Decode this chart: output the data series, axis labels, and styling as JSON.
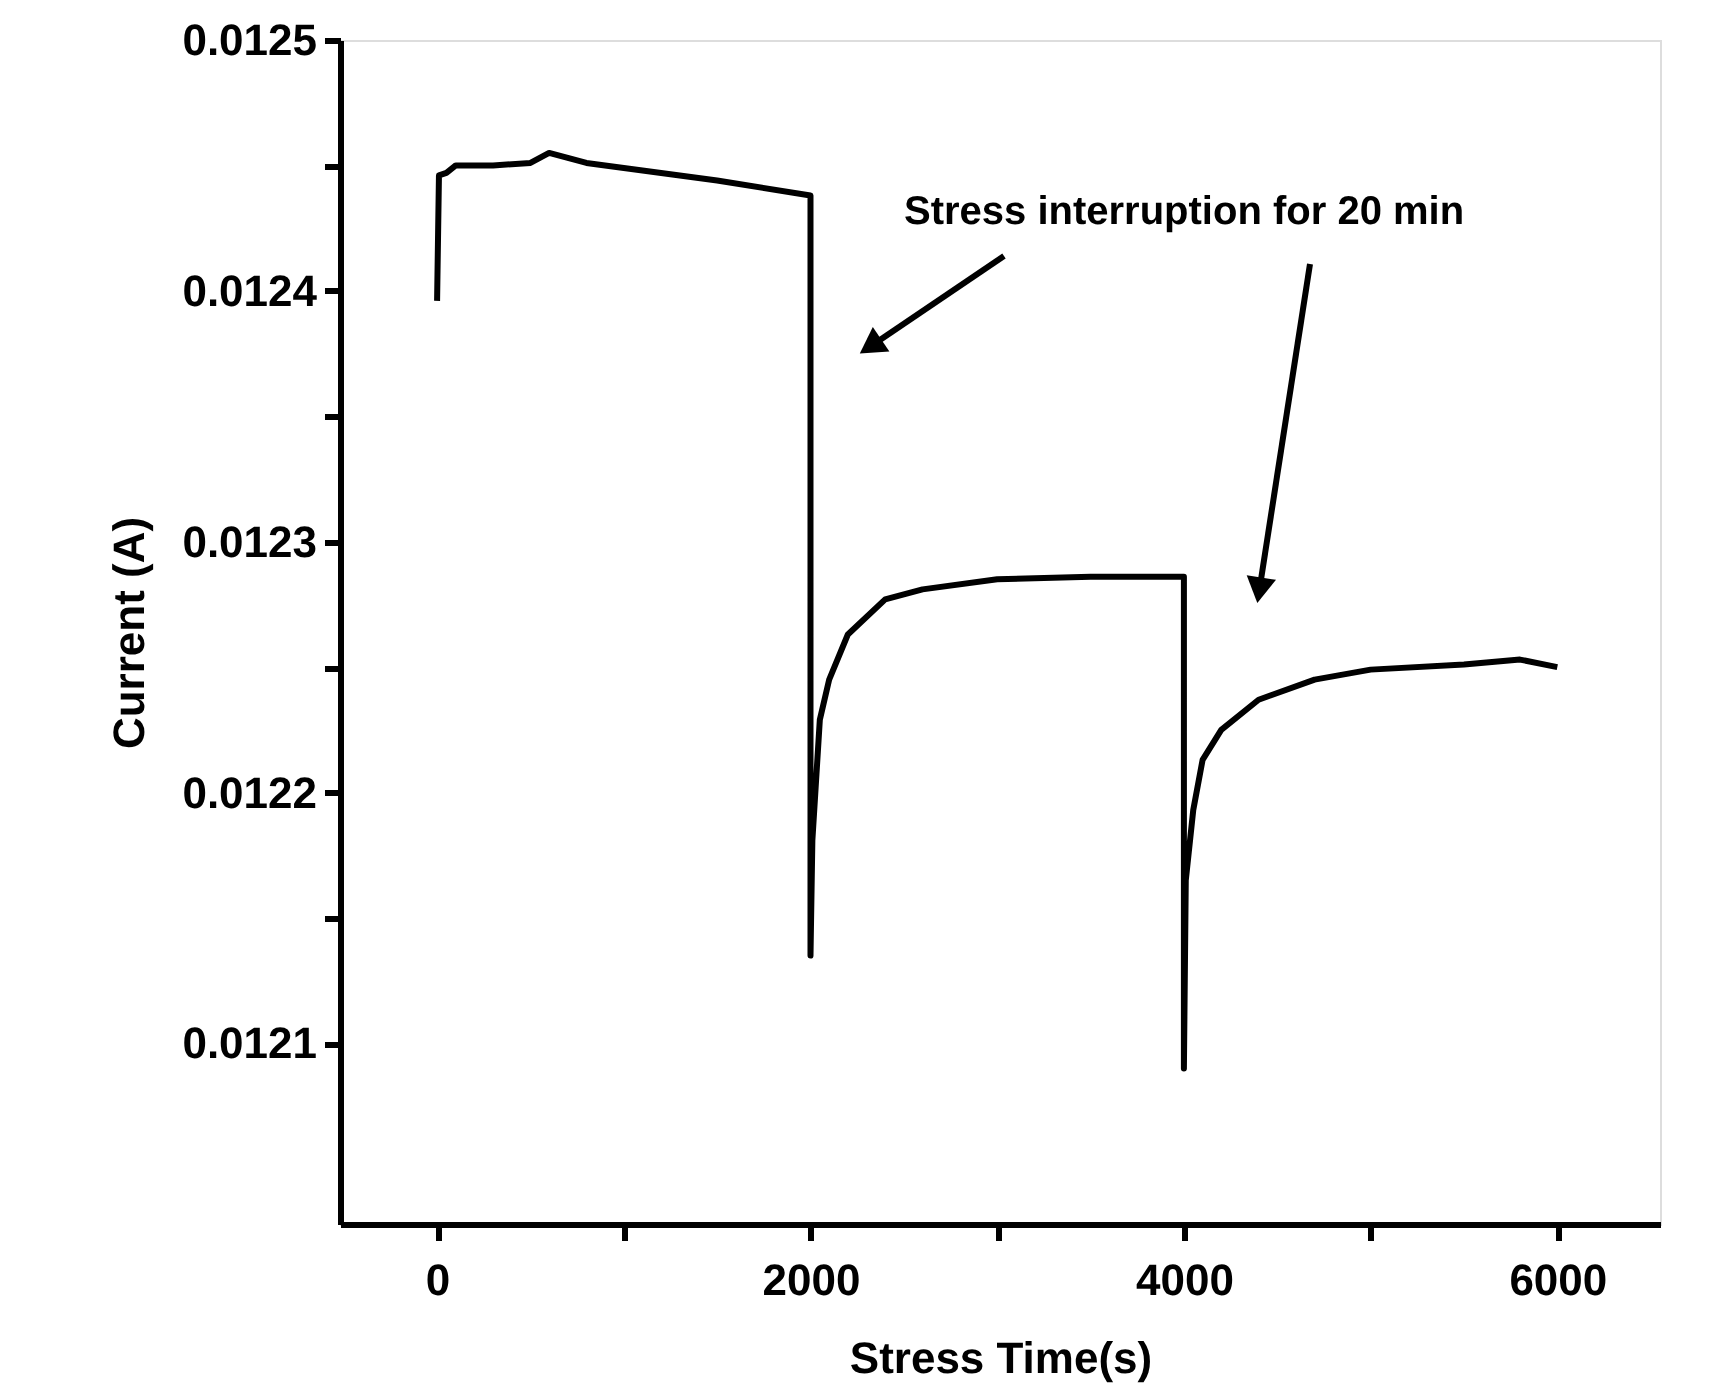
{
  "chart_data": {
    "type": "line",
    "xlabel": "Stress Time(s)",
    "ylabel": "Current (A)",
    "x": [
      0,
      10,
      50,
      100,
      300,
      500,
      600,
      800,
      1000,
      1500,
      2000,
      2000,
      2010,
      2050,
      2100,
      2200,
      2400,
      2600,
      3000,
      3500,
      4000,
      4000,
      4010,
      4050,
      4100,
      4200,
      4400,
      4700,
      5000,
      5500,
      5800,
      6000
    ],
    "series": [
      {
        "color": "#000000",
        "values": [
          0.012396,
          0.012446,
          0.012447,
          0.01245,
          0.01245,
          0.012451,
          0.012455,
          0.012451,
          0.012449,
          0.012444,
          0.012438,
          0.012135,
          0.012181,
          0.012229,
          0.012245,
          0.012263,
          0.012277,
          0.012281,
          0.012285,
          0.012286,
          0.012286,
          0.01209,
          0.012165,
          0.012193,
          0.012213,
          0.012225,
          0.012237,
          0.012245,
          0.012249,
          0.012251,
          0.012253,
          0.01225
        ]
      }
    ],
    "xlim": [
      -520,
      6550
    ],
    "ylim": [
      0.012028,
      0.0125
    ],
    "xticks": [
      0,
      {
        "value": 1000,
        "label": null
      },
      2000,
      {
        "value": 3000,
        "label": null
      },
      4000,
      {
        "value": 5000,
        "label": null
      },
      6000
    ],
    "yticks": [
      {
        "value": 0.0121,
        "label": "0.0121"
      },
      {
        "value": 0.01215,
        "label": null
      },
      {
        "value": 0.0122,
        "label": "0.0122"
      },
      {
        "value": 0.01225,
        "label": null
      },
      {
        "value": 0.0123,
        "label": "0.0123"
      },
      {
        "value": 0.01235,
        "label": null
      },
      {
        "value": 0.0124,
        "label": "0.0124"
      },
      {
        "value": 0.01245,
        "label": null
      },
      {
        "value": 0.0125,
        "label": "0.0125"
      }
    ],
    "annotations": [
      "Stress interruption for 20 min"
    ],
    "grid": false,
    "marker": "none",
    "line_style": "solid"
  }
}
